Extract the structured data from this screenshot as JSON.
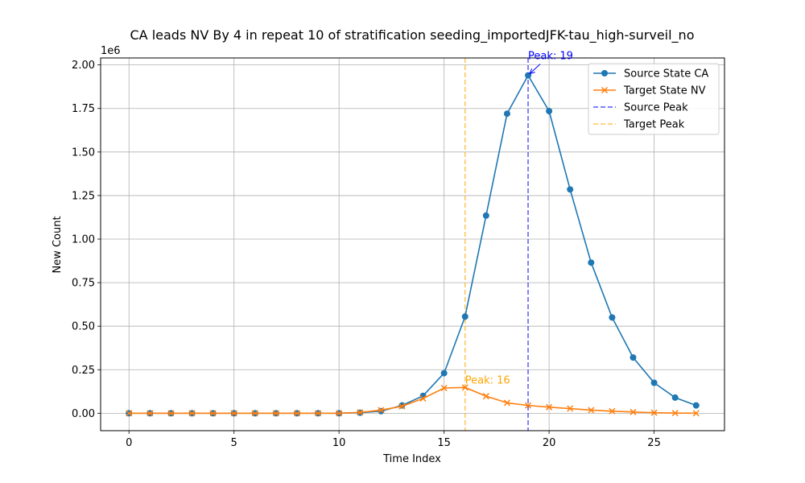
{
  "chart_data": {
    "type": "line",
    "title": "CA leads NV By 4 in repeat 10 of stratification seeding_importedJFK-tau_high-surveil_no",
    "xlabel": "Time Index",
    "ylabel": "New Count",
    "y_offset_label": "1e6",
    "xlim": [
      -1.35,
      28.35
    ],
    "ylim": [
      -0.1,
      2.04
    ],
    "x_ticks": [
      0,
      5,
      10,
      15,
      20,
      25
    ],
    "y_ticks": [
      0.0,
      0.25,
      0.5,
      0.75,
      1.0,
      1.25,
      1.5,
      1.75,
      2.0
    ],
    "y_tick_labels": [
      "0.00",
      "0.25",
      "0.50",
      "0.75",
      "1.00",
      "1.25",
      "1.50",
      "1.75",
      "2.00"
    ],
    "grid": true,
    "legend_position": "top-right",
    "x": [
      0,
      1,
      2,
      3,
      4,
      5,
      6,
      7,
      8,
      9,
      10,
      11,
      12,
      13,
      14,
      15,
      16,
      17,
      18,
      19,
      20,
      21,
      22,
      23,
      24,
      25,
      26,
      27
    ],
    "series": [
      {
        "name": "Source State CA",
        "color": "#1f77b4",
        "marker": "circle",
        "values": [
          0,
          0,
          0,
          0,
          0,
          0,
          0,
          0,
          0,
          0,
          0,
          0.003,
          0.012,
          0.045,
          0.1,
          0.23,
          0.555,
          1.135,
          1.72,
          1.94,
          1.735,
          1.285,
          0.865,
          0.55,
          0.32,
          0.175,
          0.09,
          0.045
        ]
      },
      {
        "name": "Target State NV",
        "color": "#ff7f0e",
        "marker": "x",
        "values": [
          0,
          0,
          0,
          0,
          0,
          0,
          0,
          0,
          0,
          0,
          0,
          0.005,
          0.018,
          0.04,
          0.085,
          0.145,
          0.148,
          0.098,
          0.06,
          0.045,
          0.035,
          0.027,
          0.018,
          0.012,
          0.007,
          0.003,
          0.001,
          0.0
        ]
      }
    ],
    "vlines": [
      {
        "name": "Source Peak",
        "x": 19,
        "color": "#0000ff",
        "style": "dashed"
      },
      {
        "name": "Target Peak",
        "x": 16,
        "color": "#ffa500",
        "style": "dashed"
      }
    ],
    "annotations": [
      {
        "text": "Peak: 19",
        "x": 19,
        "y": 1.94,
        "color": "#0000ff",
        "arrow": true
      },
      {
        "text": "Peak: 16",
        "x": 16,
        "y": 0.148,
        "color": "#ffa500",
        "arrow": false
      }
    ]
  }
}
